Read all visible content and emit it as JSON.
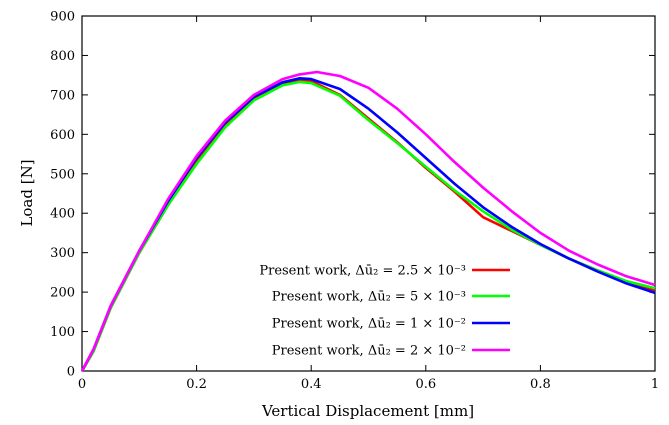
{
  "chart_data": {
    "type": "line",
    "xlabel": "Vertical Displacement [mm]",
    "ylabel": "Load [N]",
    "xlim": [
      0,
      1
    ],
    "ylim": [
      0,
      900
    ],
    "xticks": [
      "0",
      "0.2",
      "0.4",
      "0.6",
      "0.8",
      "1"
    ],
    "yticks": [
      "0",
      "100",
      "200",
      "300",
      "400",
      "500",
      "600",
      "700",
      "800",
      "900"
    ],
    "grid": false,
    "legend_position": "bottom-center",
    "series": [
      {
        "name": "Present work, Δū₂ = 2.5 × 10⁻³",
        "color": "#ff0000",
        "x": [
          0,
          0.02,
          0.05,
          0.1,
          0.15,
          0.2,
          0.25,
          0.3,
          0.35,
          0.38,
          0.4,
          0.45,
          0.5,
          0.55,
          0.6,
          0.65,
          0.7,
          0.75,
          0.8,
          0.85,
          0.9,
          0.95,
          1.0
        ],
        "y": [
          0,
          50,
          160,
          300,
          420,
          530,
          625,
          690,
          728,
          738,
          735,
          700,
          640,
          580,
          515,
          455,
          390,
          355,
          320,
          285,
          255,
          225,
          205
        ]
      },
      {
        "name": "Present work, Δū₂ = 5 × 10⁻³",
        "color": "#00ff00",
        "x": [
          0,
          0.02,
          0.05,
          0.1,
          0.15,
          0.2,
          0.25,
          0.3,
          0.35,
          0.38,
          0.4,
          0.45,
          0.5,
          0.55,
          0.6,
          0.65,
          0.7,
          0.75,
          0.8,
          0.85,
          0.9,
          0.95,
          1.0
        ],
        "y": [
          0,
          50,
          160,
          300,
          420,
          525,
          618,
          686,
          724,
          733,
          730,
          698,
          636,
          578,
          518,
          458,
          405,
          358,
          320,
          285,
          255,
          228,
          210
        ]
      },
      {
        "name": "Present work, Δū₂ = 1 × 10⁻²",
        "color": "#0000ff",
        "x": [
          0,
          0.02,
          0.05,
          0.1,
          0.15,
          0.2,
          0.25,
          0.3,
          0.35,
          0.38,
          0.4,
          0.45,
          0.5,
          0.55,
          0.6,
          0.65,
          0.7,
          0.75,
          0.8,
          0.85,
          0.9,
          0.95,
          1.0
        ],
        "y": [
          0,
          55,
          165,
          305,
          430,
          540,
          630,
          695,
          732,
          742,
          740,
          715,
          665,
          605,
          540,
          475,
          415,
          365,
          322,
          285,
          252,
          222,
          198
        ]
      },
      {
        "name": "Present work, Δū₂ = 2 × 10⁻²",
        "color": "#ff00ff",
        "x": [
          0,
          0.02,
          0.05,
          0.1,
          0.15,
          0.2,
          0.25,
          0.3,
          0.35,
          0.38,
          0.41,
          0.45,
          0.5,
          0.55,
          0.6,
          0.65,
          0.7,
          0.75,
          0.8,
          0.85,
          0.9,
          0.95,
          1.0
        ],
        "y": [
          0,
          55,
          165,
          305,
          435,
          545,
          635,
          700,
          740,
          752,
          758,
          748,
          718,
          665,
          600,
          530,
          465,
          405,
          350,
          305,
          270,
          240,
          218
        ]
      }
    ]
  }
}
